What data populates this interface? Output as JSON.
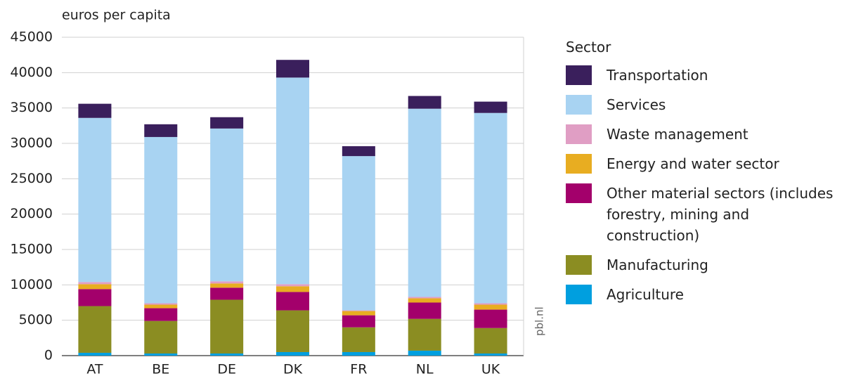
{
  "chart_data": {
    "type": "stacked-bar",
    "y_label": "euros per capita",
    "source": "pbl.nl",
    "legend_title": "Sector",
    "categories": [
      "AT",
      "BE",
      "DE",
      "DK",
      "FR",
      "NL",
      "UK"
    ],
    "series": [
      {
        "name": "Agriculture",
        "color": "#009fdf",
        "values": [
          400,
          300,
          300,
          500,
          500,
          700,
          300
        ]
      },
      {
        "name": "Manufacturing",
        "color": "#8b8d22",
        "values": [
          6600,
          4600,
          7600,
          5900,
          3500,
          4500,
          3600
        ]
      },
      {
        "name": "Other material sectors (includes forestry, mining and construction)",
        "color": "#a3006b",
        "values": [
          2400,
          1800,
          1700,
          2600,
          1700,
          2300,
          2600
        ]
      },
      {
        "name": "Energy and water sector",
        "color": "#e8ad21",
        "values": [
          700,
          500,
          600,
          800,
          600,
          600,
          700
        ]
      },
      {
        "name": "Waste management",
        "color": "#e09ec4",
        "values": [
          300,
          200,
          300,
          300,
          100,
          200,
          200
        ]
      },
      {
        "name": "Services",
        "color": "#a8d3f2",
        "values": [
          23200,
          23500,
          21600,
          29200,
          21800,
          26600,
          26900
        ]
      },
      {
        "name": "Transportation",
        "color": "#3a1f5c",
        "values": [
          2000,
          1800,
          1600,
          2500,
          1400,
          1800,
          1600
        ]
      }
    ],
    "ylim": [
      0,
      45000
    ],
    "yticks": [
      0,
      5000,
      10000,
      15000,
      20000,
      25000,
      30000,
      35000,
      40000,
      45000
    ],
    "grid": true,
    "legend": "right"
  }
}
